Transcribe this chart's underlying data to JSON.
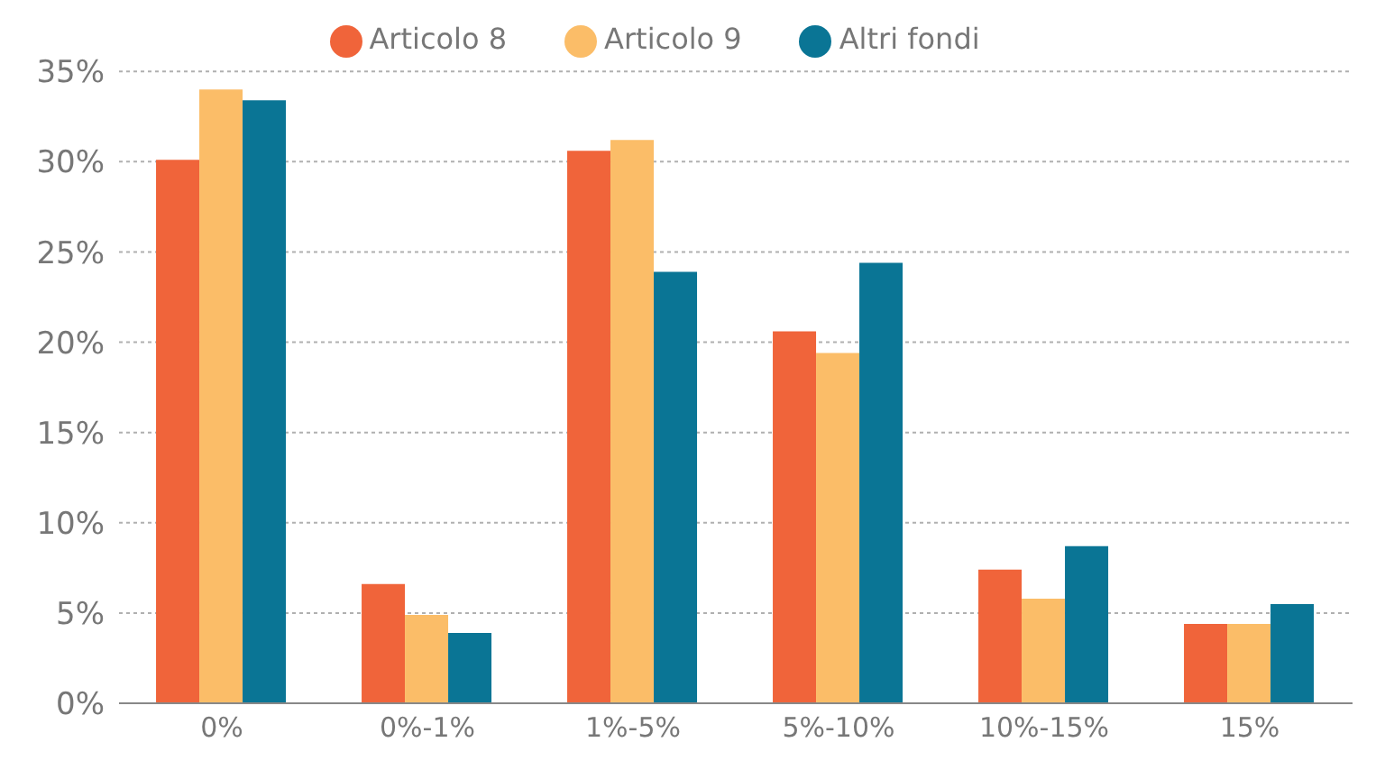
{
  "chart_data": {
    "type": "bar",
    "categories": [
      "0%",
      "0%-1%",
      "1%-5%",
      "5%-10%",
      "10%-15%",
      "15%"
    ],
    "series": [
      {
        "name": "Articolo 8",
        "color": "#f0643a",
        "values": [
          30.1,
          6.6,
          30.6,
          20.6,
          7.4,
          4.4
        ]
      },
      {
        "name": "Articolo 9",
        "color": "#fbbd68",
        "values": [
          34,
          4.9,
          31.2,
          19.4,
          5.8,
          4.4
        ]
      },
      {
        "name": "Altri fondi",
        "color": "#0a7595",
        "values": [
          33.4,
          3.9,
          23.9,
          24.4,
          8.7,
          5.5
        ]
      }
    ],
    "ylim": [
      0,
      35
    ],
    "yticks": [
      {
        "value": 0,
        "label": "0%"
      },
      {
        "value": 5,
        "label": "5%"
      },
      {
        "value": 10,
        "label": "10%"
      },
      {
        "value": 15,
        "label": "15%"
      },
      {
        "value": 20,
        "label": "20%"
      },
      {
        "value": 25,
        "label": "25%"
      },
      {
        "value": 30,
        "label": "30%"
      },
      {
        "value": 35,
        "label": "35%"
      }
    ],
    "grid": "y",
    "legend": "top"
  }
}
